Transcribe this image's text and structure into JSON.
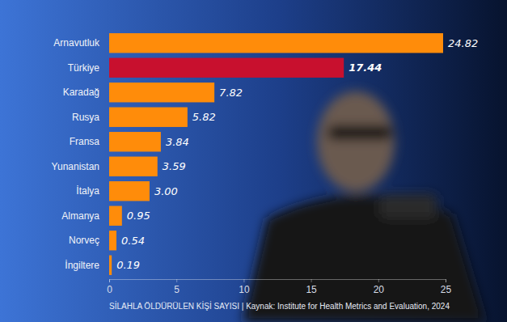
{
  "chart_data": {
    "type": "bar",
    "orientation": "horizontal",
    "xlabel": "SİLAHLA ÖLDÜRÜLEN KİŞİ SAYISI | Kaynak: Institute for Health Metrics and Evaluation, 2024",
    "categories": [
      "Arnavutluk",
      "Türkiye",
      "Karadağ",
      "Rusya",
      "Fransa",
      "Yunanistan",
      "İtalya",
      "Almanya",
      "Norveç",
      "İngiltere"
    ],
    "values": [
      24.82,
      17.44,
      7.82,
      5.82,
      3.84,
      3.59,
      3.0,
      0.95,
      0.54,
      0.19
    ],
    "value_labels": [
      "24.82",
      "17.44",
      "7.82",
      "5.82",
      "3.84",
      "3.59",
      "3.00",
      "0.95",
      "0.54",
      "0.19"
    ],
    "colors": [
      "#ff8c0a",
      "#c8102e",
      "#ff8c0a",
      "#ff8c0a",
      "#ff8c0a",
      "#ff8c0a",
      "#ff8c0a",
      "#ff8c0a",
      "#ff8c0a",
      "#ff8c0a"
    ],
    "xlim": [
      0,
      25
    ],
    "xticks": [
      0,
      5,
      10,
      15,
      20,
      25
    ],
    "grid": false,
    "data_labels": true
  }
}
